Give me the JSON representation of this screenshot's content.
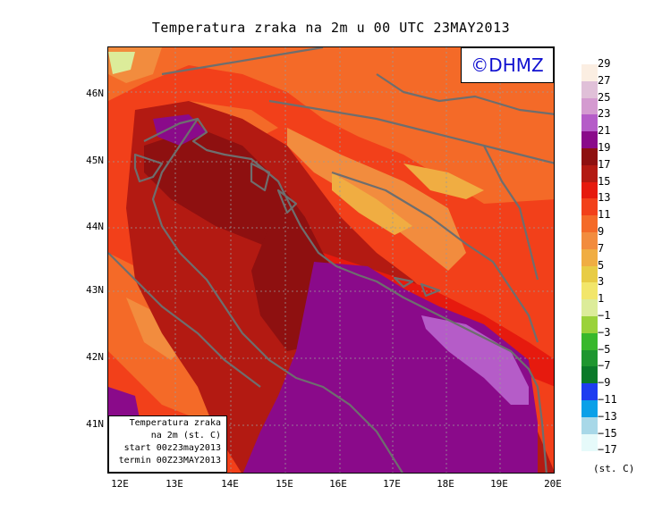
{
  "title": "Temperatura zraka na 2m u 00 UTC 23MAY2013",
  "logo": "©DHMZ",
  "info": {
    "line1": "Temperatura zraka",
    "line2": "na 2m (st. C)",
    "line3": "start 00z23may2013",
    "line4": "termin 00Z23MAY2013"
  },
  "axes": {
    "lat_ticks": [
      "46N",
      "45N",
      "44N",
      "43N",
      "42N",
      "41N"
    ],
    "lon_ticks": [
      "12E",
      "13E",
      "14E",
      "15E",
      "16E",
      "17E",
      "18E",
      "19E",
      "20E"
    ]
  },
  "legend": {
    "labels": [
      "29",
      "27",
      "25",
      "23",
      "21",
      "19",
      "17",
      "15",
      "13",
      "11",
      "9",
      "7",
      "5",
      "3",
      "1",
      "−1",
      "−3",
      "−5",
      "−7",
      "−9",
      "−11",
      "−13",
      "−15",
      "−17"
    ],
    "unit": "(st. C)",
    "colors": [
      "#fbeee2",
      "#e0c0d8",
      "#d49ad0",
      "#b55cc8",
      "#8a0a8a",
      "#8e1010",
      "#b31a12",
      "#e61a0e",
      "#f2401a",
      "#f46a28",
      "#f28c3e",
      "#f0ad42",
      "#e8cc44",
      "#f2e66a",
      "#dcec9a",
      "#9ad23a",
      "#38b82c",
      "#1e9630",
      "#0a7a2a",
      "#1e3cf0",
      "#0aa0e8",
      "#a8d8e8",
      "#e6fafa"
    ]
  },
  "map_colors": {
    "sea_purple": "#8a0a8a",
    "sea_light": "#b55cc8",
    "coast": "#6e6e6e"
  }
}
